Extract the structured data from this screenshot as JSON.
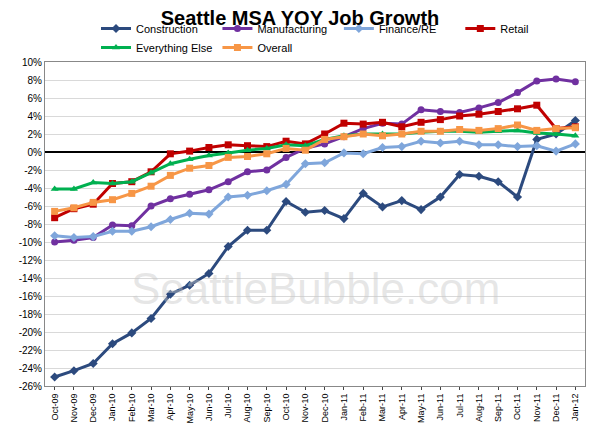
{
  "chart_data": {
    "type": "line",
    "title": "Seattle MSA YOY Job Growth",
    "categories": [
      "Oct-09",
      "Nov-09",
      "Dec-09",
      "Jan-10",
      "Feb-10",
      "Mar-10",
      "Apr-10",
      "May-10",
      "Jun-10",
      "Jul-10",
      "Aug-10",
      "Sep-10",
      "Oct-10",
      "Nov-10",
      "Dec-10",
      "Jan-11",
      "Feb-11",
      "Mar-11",
      "Apr-11",
      "May-11",
      "Jun-11",
      "Jul-11",
      "Aug-11",
      "Sep-11",
      "Oct-11",
      "Nov-11",
      "Dec-11",
      "Jan-12"
    ],
    "series": [
      {
        "name": "Construction",
        "color": "#2c4a7e",
        "marker": "diamond",
        "line_style": "solid",
        "values": [
          -25,
          -24.3,
          -23.5,
          -21.3,
          -20.1,
          -18.5,
          -15.8,
          -14.8,
          -13.5,
          -10.5,
          -8.7,
          -8.7,
          -5.5,
          -6.7,
          -6.5,
          -7.4,
          -4.6,
          -6.1,
          -5.4,
          -6.4,
          -5,
          -2.5,
          -2.7,
          -3.3,
          -5,
          1.4,
          2,
          3.5
        ]
      },
      {
        "name": "Manufacturing",
        "color": "#7030a0",
        "marker": "circle",
        "line_style": "solid",
        "values": [
          -10,
          -9.8,
          -9.5,
          -8.1,
          -8.2,
          -6,
          -5.2,
          -4.7,
          -4.2,
          -3.3,
          -2.2,
          -2,
          -0.6,
          0.4,
          0.9,
          1.7,
          2.6,
          3.2,
          3.1,
          4.7,
          4.5,
          4.4,
          4.9,
          5.5,
          6.6,
          7.9,
          8.1,
          7.8
        ]
      },
      {
        "name": "Finance/RE",
        "color": "#7fa6db",
        "marker": "diamond",
        "line_style": "solid",
        "values": [
          -9.3,
          -9.5,
          -9.4,
          -8.8,
          -8.8,
          -8.3,
          -7.5,
          -6.8,
          -6.9,
          -5,
          -4.8,
          -4.3,
          -3.6,
          -1.3,
          -1.2,
          -0.1,
          -0.2,
          0.5,
          0.6,
          1.2,
          1,
          1.2,
          0.8,
          0.8,
          0.6,
          0.7,
          0.1,
          0.9
        ]
      },
      {
        "name": "Retail",
        "color": "#c00000",
        "marker": "square",
        "line_style": "solid",
        "values": [
          -7.3,
          -6.3,
          -5.8,
          -3.5,
          -3.3,
          -2.2,
          -0.2,
          0.1,
          0.5,
          0.8,
          0.7,
          0.6,
          1.2,
          0.9,
          2,
          3.2,
          3.1,
          3.3,
          2.8,
          3.3,
          3.6,
          4,
          4.2,
          4.5,
          4.8,
          5.2,
          2.6,
          2.8
        ]
      },
      {
        "name": "Everything Else",
        "color": "#00b050",
        "marker": "triangle-up",
        "line_style": "solid",
        "values": [
          -4.1,
          -4.1,
          -3.4,
          -3.5,
          -3.3,
          -2.3,
          -1.3,
          -0.8,
          -0.4,
          -0.1,
          0.2,
          0.4,
          0.8,
          0.7,
          1.4,
          1.8,
          2,
          2,
          2,
          2.2,
          2.3,
          2.3,
          2.2,
          2.3,
          2.4,
          2.1,
          2,
          1.8
        ]
      },
      {
        "name": "Overall",
        "color": "#f79646",
        "marker": "square",
        "line_style": "solid",
        "values": [
          -6.6,
          -6.2,
          -5.6,
          -5.3,
          -4.6,
          -3.8,
          -2.6,
          -1.8,
          -1.5,
          -0.6,
          -0.5,
          -0.2,
          0.4,
          0.2,
          1.4,
          1.7,
          2,
          1.8,
          2,
          2.3,
          2.3,
          2.5,
          2.4,
          2.6,
          3,
          2.4,
          2.6,
          2.7
        ]
      }
    ],
    "ylim": [
      -26,
      10
    ],
    "yticks": [
      {
        "value": -26,
        "label": "-26%"
      },
      {
        "value": -24,
        "label": "-24%"
      },
      {
        "value": -22,
        "label": "-22%"
      },
      {
        "value": -20,
        "label": "-20%"
      },
      {
        "value": -18,
        "label": "-18%"
      },
      {
        "value": -16,
        "label": "-16%"
      },
      {
        "value": -14,
        "label": "-14%"
      },
      {
        "value": -12,
        "label": "-12%"
      },
      {
        "value": -10,
        "label": "-10%"
      },
      {
        "value": -8,
        "label": "-8%"
      },
      {
        "value": -6,
        "label": "-6%"
      },
      {
        "value": -4,
        "label": "-4%"
      },
      {
        "value": -2,
        "label": "-2%"
      },
      {
        "value": 0,
        "label": "0%"
      },
      {
        "value": 2,
        "label": "2%"
      },
      {
        "value": 4,
        "label": "4%"
      },
      {
        "value": 6,
        "label": "6%"
      },
      {
        "value": 8,
        "label": "8%"
      },
      {
        "value": 10,
        "label": "10%"
      }
    ],
    "grid": true,
    "legend": "top",
    "annotations": [
      {
        "text": "SeattleBubble.com"
      }
    ]
  }
}
